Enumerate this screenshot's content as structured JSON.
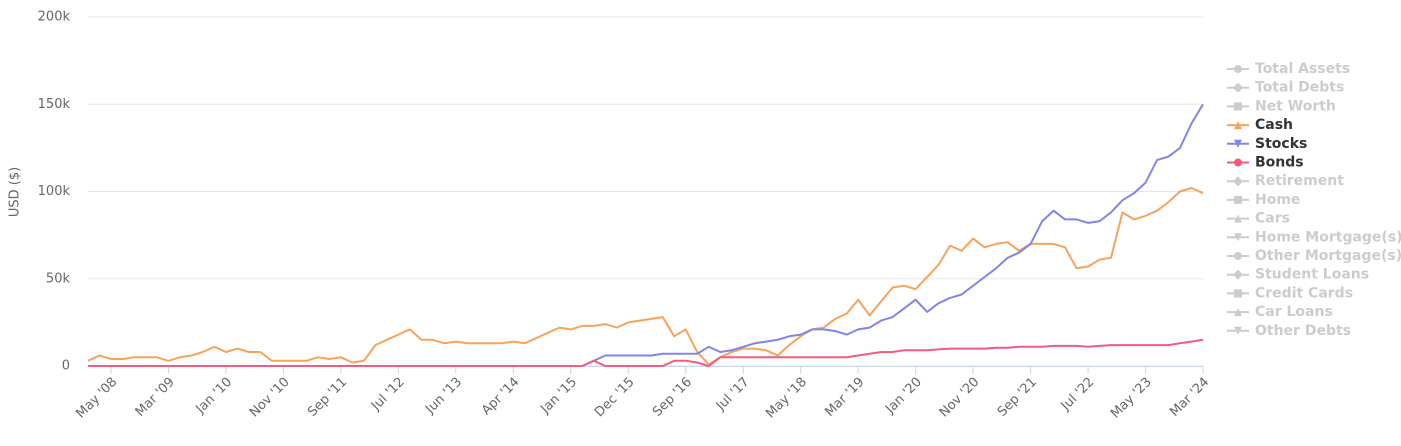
{
  "chart_data": {
    "type": "line",
    "y_label": "USD ($)",
    "categories": [
      null,
      null,
      "May '08",
      null,
      null,
      null,
      null,
      "Mar '09",
      null,
      null,
      null,
      null,
      "Jan '10",
      null,
      null,
      null,
      null,
      "Nov '10",
      null,
      null,
      null,
      null,
      "Sep '11",
      null,
      null,
      null,
      null,
      "Jul '12",
      null,
      null,
      null,
      null,
      "Jun '13",
      null,
      null,
      null,
      null,
      "Apr '14",
      null,
      null,
      null,
      null,
      "Jan '15",
      null,
      null,
      null,
      null,
      "Dec '15",
      null,
      null,
      null,
      null,
      "Sep '16",
      null,
      null,
      null,
      null,
      "Jul '17",
      null,
      null,
      null,
      null,
      "May '18",
      null,
      null,
      null,
      null,
      "Mar '19",
      null,
      null,
      null,
      null,
      "Jan '20",
      null,
      null,
      null,
      null,
      "Nov '20",
      null,
      null,
      null,
      null,
      "Sep '21",
      null,
      null,
      null,
      null,
      "Jul '22",
      null,
      null,
      null,
      null,
      "May '23",
      null,
      null,
      null,
      null,
      "Mar '24"
    ],
    "ylim": [
      0,
      200000
    ],
    "yticks": [
      0,
      {
        "value": 50000,
        "label": "50k"
      },
      {
        "value": 100000,
        "label": "100k"
      },
      {
        "value": 150000,
        "label": "150k"
      },
      {
        "value": 200000,
        "label": "200k"
      }
    ],
    "grid": true,
    "series": [
      {
        "name": "Total Assets",
        "visible": false
      },
      {
        "name": "Total Debts",
        "visible": false
      },
      {
        "name": "Net Worth",
        "visible": false
      },
      {
        "name": "Cash",
        "color": "#f7a35c",
        "values": [
          3000,
          6000,
          4000,
          4000,
          5000,
          5000,
          5000,
          3000,
          5000,
          6000,
          8000,
          11000,
          8000,
          10000,
          8000,
          8000,
          3000,
          3000,
          3000,
          3000,
          5000,
          4000,
          5000,
          2000,
          3000,
          12000,
          15000,
          18000,
          21000,
          15000,
          15000,
          13000,
          14000,
          13000,
          13000,
          13000,
          13000,
          14000,
          13000,
          16000,
          19000,
          22000,
          21000,
          23000,
          23000,
          24000,
          22000,
          25000,
          26000,
          27000,
          28000,
          17000,
          21000,
          8000,
          1000,
          5000,
          8000,
          10000,
          10000,
          9000,
          6000,
          12000,
          17000,
          21000,
          22000,
          27000,
          30000,
          38000,
          29000,
          37000,
          45000,
          46000,
          44000,
          51000,
          58000,
          69000,
          66000,
          73000,
          68000,
          70000,
          71000,
          66000,
          70000,
          70000,
          70000,
          68000,
          56000,
          57000,
          61000,
          62000,
          88000,
          84000,
          86000,
          89000,
          94000,
          100000,
          102000,
          99000
        ]
      },
      {
        "name": "Stocks",
        "color": "#8085e9",
        "values": [
          0,
          0,
          0,
          0,
          0,
          0,
          0,
          0,
          0,
          0,
          0,
          0,
          0,
          0,
          0,
          0,
          0,
          0,
          0,
          0,
          0,
          0,
          0,
          0,
          0,
          0,
          0,
          0,
          0,
          0,
          0,
          0,
          0,
          0,
          0,
          0,
          0,
          0,
          0,
          0,
          0,
          0,
          0,
          0,
          3000,
          6000,
          6000,
          6000,
          6000,
          6000,
          7000,
          7000,
          7000,
          7000,
          11000,
          8000,
          9000,
          11000,
          13000,
          14000,
          15000,
          17000,
          18000,
          21000,
          21000,
          20000,
          18000,
          21000,
          22000,
          26000,
          28000,
          33000,
          38000,
          31000,
          36000,
          39000,
          41000,
          46000,
          51000,
          56000,
          62000,
          65000,
          70000,
          83000,
          89000,
          84000,
          84000,
          82000,
          83000,
          88000,
          95000,
          99000,
          105000,
          118000,
          120000,
          125000,
          139000,
          150000
        ]
      },
      {
        "name": "Bonds",
        "color": "#f15c80",
        "values": [
          0,
          0,
          0,
          0,
          0,
          0,
          0,
          0,
          0,
          0,
          0,
          0,
          0,
          0,
          0,
          0,
          0,
          0,
          0,
          0,
          0,
          0,
          0,
          0,
          0,
          0,
          0,
          0,
          0,
          0,
          0,
          0,
          0,
          0,
          0,
          0,
          0,
          0,
          0,
          0,
          0,
          0,
          0,
          0,
          3000,
          0,
          0,
          0,
          0,
          0,
          0,
          3000,
          3000,
          2000,
          0,
          5000,
          5000,
          5000,
          5000,
          5000,
          5000,
          5000,
          5000,
          5000,
          5000,
          5000,
          5000,
          6000,
          7000,
          8000,
          8000,
          9000,
          9000,
          9000,
          9500,
          10000,
          10000,
          10000,
          10000,
          10500,
          10500,
          11000,
          11000,
          11000,
          11500,
          11500,
          11500,
          11000,
          11500,
          12000,
          12000,
          12000,
          12000,
          12000,
          12000,
          13000,
          14000,
          15000
        ]
      },
      {
        "name": "Retirement",
        "visible": false
      },
      {
        "name": "Home",
        "visible": false
      },
      {
        "name": "Cars",
        "visible": false
      },
      {
        "name": "Home Mortgage(s)",
        "visible": false
      },
      {
        "name": "Other Mortgage(s)",
        "visible": false
      },
      {
        "name": "Student Loans",
        "visible": false
      },
      {
        "name": "Credit Cards",
        "visible": false
      },
      {
        "name": "Car Loans",
        "visible": false
      },
      {
        "name": "Other Debts",
        "visible": false
      }
    ]
  }
}
